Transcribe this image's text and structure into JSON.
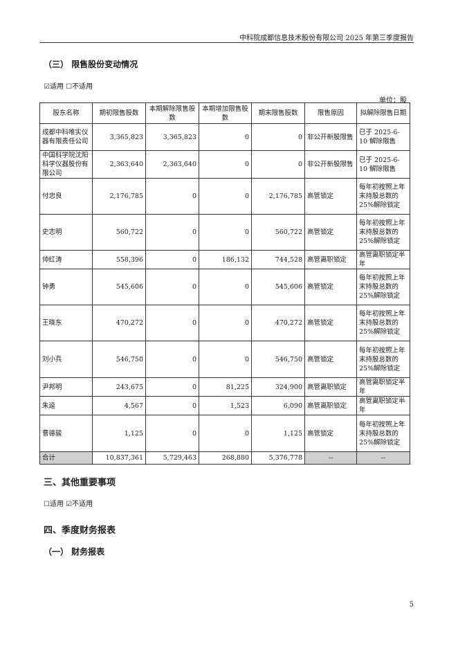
{
  "header": "中科院成都信息技术股份有限公司 2025 年第三季度报告",
  "section3_sub": "（三） 限售股份变动情况",
  "applicable_1": "☑适用 ☐不适用",
  "unit": "单位：股",
  "table": {
    "columns": [
      "股东名称",
      "期初限售股数",
      "本期解除限售股数",
      "本期增加限售股数",
      "期末限售股数",
      "限售原因",
      "拟解除限售日期"
    ],
    "rows": [
      [
        "成都中科唯实仪器有限责任公司",
        "3,365,823",
        "3,365,823",
        "0",
        "0",
        "非公开新股限售",
        "已于 2025-6-10 解除限售"
      ],
      [
        "中国科学院沈阳科学仪器股份有限公司",
        "2,363,640",
        "2,363,640",
        "0",
        "0",
        "非公开新股限售",
        "已于 2025-6-10 解除限售"
      ],
      [
        "付忠良",
        "2,176,785",
        "0",
        "0",
        "2,176,785",
        "高管锁定",
        "每年初按照上年末持股总数的 25%解除锁定"
      ],
      [
        "史志明",
        "560,722",
        "0",
        "0",
        "560,722",
        "高管锁定",
        "每年初按照上年末持股总数的 25%解除锁定"
      ],
      [
        "帅红涛",
        "558,396",
        "0",
        "186,132",
        "744,528",
        "高管离职锁定",
        "高管离职锁定半年"
      ],
      [
        "钟勇",
        "545,606",
        "0",
        "0",
        "545,606",
        "高管锁定",
        "每年初按照上年末持股总数的 25%解除锁定"
      ],
      [
        "王晓东",
        "470,272",
        "0",
        "0",
        "470,272",
        "高管锁定",
        "每年初按照上年末持股总数的 25%解除锁定"
      ],
      [
        "刘小兵",
        "546,750",
        "0",
        "0",
        "546,750",
        "高管锁定",
        "每年初按照上年末持股总数的 25%解除锁定"
      ],
      [
        "尹邦明",
        "243,675",
        "0",
        "81,225",
        "324,900",
        "高管离职锁定",
        "高管离职锁定半年"
      ],
      [
        "朱逵",
        "4,567",
        "0",
        "1,523",
        "6,090",
        "高管离职锁定",
        "高管离职锁定半年"
      ],
      [
        "曹德骏",
        "1,125",
        "0",
        "0",
        "1,125",
        "高管锁定",
        "每年初按照上年末持股总数的 25%解除锁定"
      ]
    ],
    "total": [
      "合计",
      "10,837,361",
      "5,729,463",
      "268,880",
      "5,376,778",
      "--",
      "--"
    ]
  },
  "section_other": "三、其他重要事项",
  "applicable_2": "☐适用 ☑不适用",
  "section_fin": "四、季度财务报表",
  "section_fin_sub": "（一） 财务报表",
  "page_number": "5"
}
